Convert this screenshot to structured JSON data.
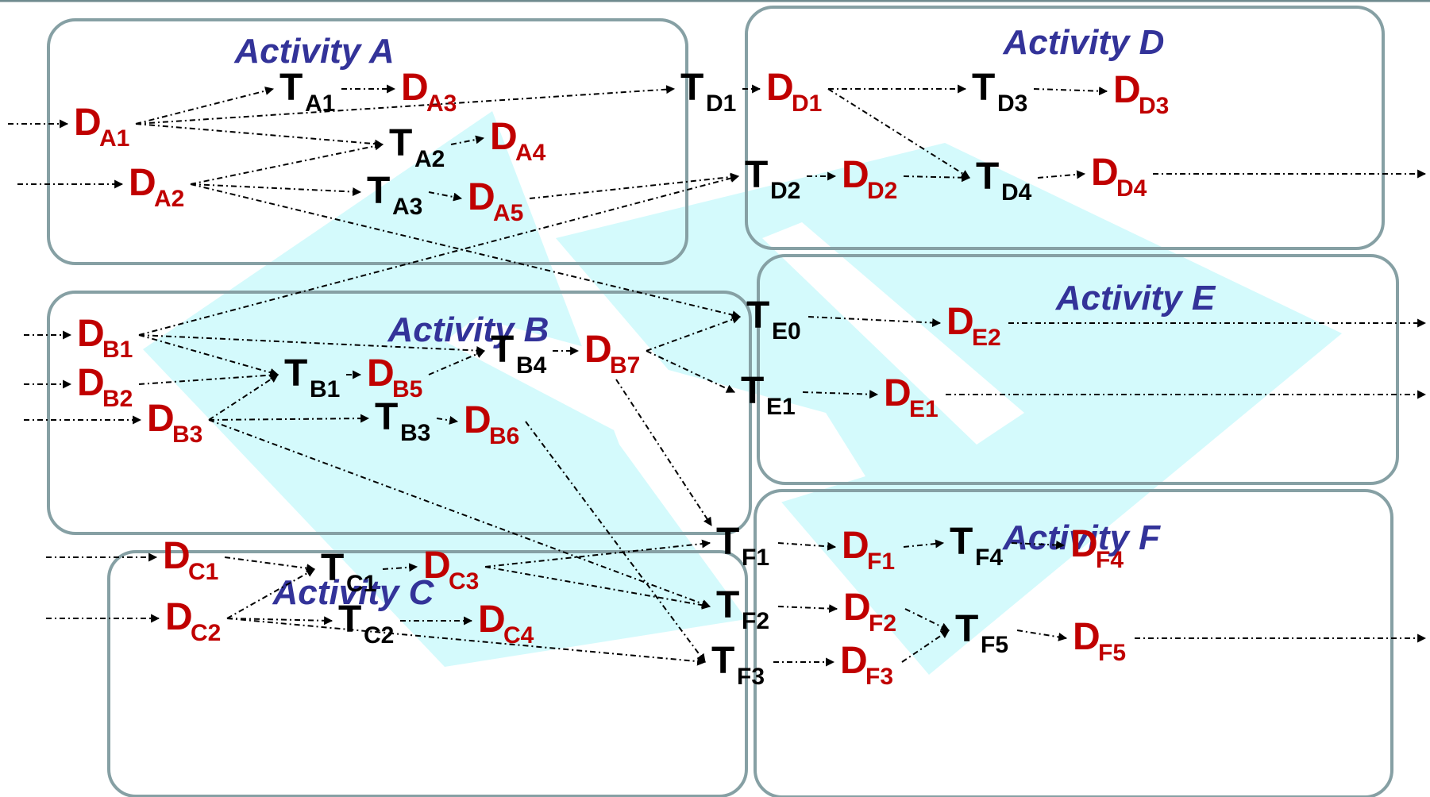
{
  "colors": {
    "task": "#000000",
    "data": "#c00000",
    "activity_title": "#333399",
    "box_border": "#86a0a4",
    "watermark": "#d4fafc",
    "edge": "#000000",
    "top_rule": "#6f8a8e"
  },
  "activities": {
    "A": "Activity A",
    "B": "Activity B",
    "C": "Activity C",
    "D": "Activity D",
    "E": "Activity E",
    "F": "Activity F"
  },
  "nodes": {
    "TA1": {
      "main": "T",
      "sub": "A1"
    },
    "TA2": {
      "main": "T",
      "sub": "A2"
    },
    "TA3": {
      "main": "T",
      "sub": "A3"
    },
    "DA1": {
      "main": "D",
      "sub": "A1"
    },
    "DA2": {
      "main": "D",
      "sub": "A2"
    },
    "DA3": {
      "main": "D",
      "sub": "A3"
    },
    "DA4": {
      "main": "D",
      "sub": "A4"
    },
    "DA5": {
      "main": "D",
      "sub": "A5"
    },
    "DB1": {
      "main": "D",
      "sub": "B1"
    },
    "DB2": {
      "main": "D",
      "sub": "B2"
    },
    "DB3": {
      "main": "D",
      "sub": "B3"
    },
    "TB1": {
      "main": "T",
      "sub": "B1"
    },
    "DB5": {
      "main": "D",
      "sub": "B5"
    },
    "TB4": {
      "main": "T",
      "sub": "B4"
    },
    "DB7": {
      "main": "D",
      "sub": "B7"
    },
    "TB3": {
      "main": "T",
      "sub": "B3"
    },
    "DB6": {
      "main": "D",
      "sub": "B6"
    },
    "DC1": {
      "main": "D",
      "sub": "C1"
    },
    "DC2": {
      "main": "D",
      "sub": "C2"
    },
    "TC1": {
      "main": "T",
      "sub": "C1"
    },
    "DC3": {
      "main": "D",
      "sub": "C3"
    },
    "TC2": {
      "main": "T",
      "sub": "C2"
    },
    "DC4": {
      "main": "D",
      "sub": "C4"
    },
    "TD1": {
      "main": "T",
      "sub": "D1"
    },
    "DD1": {
      "main": "D",
      "sub": "D1"
    },
    "TD3": {
      "main": "T",
      "sub": "D3"
    },
    "DD3": {
      "main": "D",
      "sub": "D3"
    },
    "TD2": {
      "main": "T",
      "sub": "D2"
    },
    "DD2": {
      "main": "D",
      "sub": "D2"
    },
    "TD4": {
      "main": "T",
      "sub": "D4"
    },
    "DD4": {
      "main": "D",
      "sub": "D4"
    },
    "TE0": {
      "main": "T",
      "sub": "E0"
    },
    "DE2": {
      "main": "D",
      "sub": "E2"
    },
    "TE1": {
      "main": "T",
      "sub": "E1"
    },
    "DE1": {
      "main": "D",
      "sub": "E1"
    },
    "TF1": {
      "main": "T",
      "sub": "F1"
    },
    "DF1": {
      "main": "D",
      "sub": "F1"
    },
    "TF4": {
      "main": "T",
      "sub": "F4"
    },
    "DF4": {
      "main": "D",
      "sub": "F4"
    },
    "TF2": {
      "main": "T",
      "sub": "F2"
    },
    "DF2": {
      "main": "D",
      "sub": "F2"
    },
    "TF5": {
      "main": "T",
      "sub": "F5"
    },
    "DF5": {
      "main": "D",
      "sub": "F5"
    },
    "TF3": {
      "main": "T",
      "sub": "F3"
    },
    "DF3": {
      "main": "D",
      "sub": "F3"
    }
  },
  "edges": [
    [
      "in",
      "DA1"
    ],
    [
      "DA1",
      "TA1"
    ],
    [
      "TA1",
      "DA3"
    ],
    [
      "DA1",
      "TA2"
    ],
    [
      "DA1",
      "TD1"
    ],
    [
      "DA2",
      "TA2"
    ],
    [
      "TA2",
      "DA4"
    ],
    [
      "in",
      "DA2"
    ],
    [
      "DA2",
      "TA3"
    ],
    [
      "TA3",
      "DA5"
    ],
    [
      "DA2",
      "TE0"
    ],
    [
      "DA5",
      "TD2"
    ],
    [
      "in",
      "DB1"
    ],
    [
      "in",
      "DB2"
    ],
    [
      "in",
      "DB3"
    ],
    [
      "DB1",
      "TD2"
    ],
    [
      "DB1",
      "TB4"
    ],
    [
      "DB1",
      "TB1"
    ],
    [
      "DB2",
      "TB1"
    ],
    [
      "DB3",
      "TB1"
    ],
    [
      "TB1",
      "DB5"
    ],
    [
      "DB5",
      "TB4"
    ],
    [
      "TB4",
      "DB7"
    ],
    [
      "DB3",
      "TB3"
    ],
    [
      "TB3",
      "DB6"
    ],
    [
      "DB3",
      "TF2"
    ],
    [
      "DB6",
      "TF3"
    ],
    [
      "DB7",
      "TE0"
    ],
    [
      "DB7",
      "TE1"
    ],
    [
      "DB7",
      "TF1"
    ],
    [
      "in",
      "DC1"
    ],
    [
      "in",
      "DC2"
    ],
    [
      "DC1",
      "TC1"
    ],
    [
      "DC2",
      "TC1"
    ],
    [
      "TC1",
      "DC3"
    ],
    [
      "DC2",
      "TC2"
    ],
    [
      "TC2",
      "DC4"
    ],
    [
      "DC2",
      "TF3"
    ],
    [
      "DC3",
      "TF1"
    ],
    [
      "DC3",
      "TF2"
    ],
    [
      "TD1",
      "DD1"
    ],
    [
      "DD1",
      "TD3"
    ],
    [
      "TD3",
      "DD3"
    ],
    [
      "DD1",
      "TD4"
    ],
    [
      "TD2",
      "DD2"
    ],
    [
      "DD2",
      "TD4"
    ],
    [
      "TD4",
      "DD4"
    ],
    [
      "DD4",
      "out"
    ],
    [
      "TE0",
      "DE2"
    ],
    [
      "DE2",
      "out"
    ],
    [
      "TE1",
      "DE1"
    ],
    [
      "DE1",
      "out"
    ],
    [
      "TF1",
      "DF1"
    ],
    [
      "DF1",
      "TF4"
    ],
    [
      "TF4",
      "DF4"
    ],
    [
      "TF2",
      "DF2"
    ],
    [
      "DF2",
      "TF5"
    ],
    [
      "TF3",
      "DF3"
    ],
    [
      "DF3",
      "TF5"
    ],
    [
      "TF5",
      "DF5"
    ],
    [
      "DF5",
      "out"
    ]
  ]
}
